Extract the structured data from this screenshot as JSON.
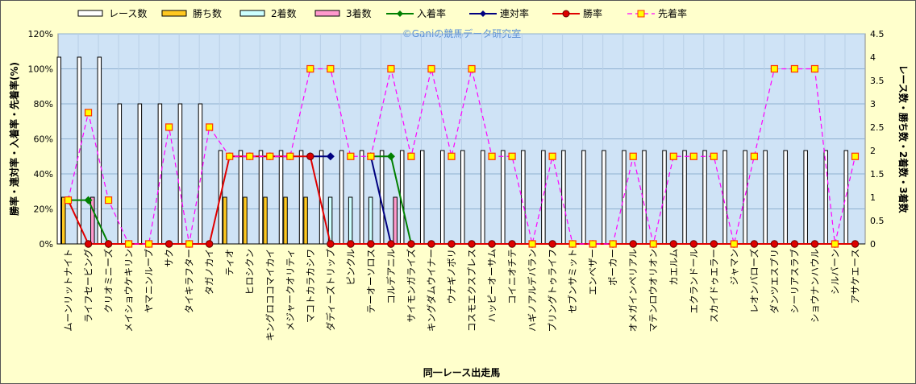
{
  "chart_data": {
    "type": "bar",
    "watermark": "©Ganiの競馬データ研究室",
    "xlabel": "同一レース出走馬",
    "ylabel_left": "勝率・連対率・入着率・先着率(%)",
    "ylabel_right": "レース数・勝ち数・2着数・3着数",
    "y_left": {
      "lim": [
        0,
        120
      ],
      "ticks": [
        "0%",
        "20%",
        "40%",
        "60%",
        "80%",
        "100%",
        "120%"
      ]
    },
    "y_right": {
      "lim": [
        0,
        4.5
      ],
      "ticks": [
        "0",
        "0.5",
        "1",
        "1.5",
        "2",
        "2.5",
        "3",
        "3.5",
        "4",
        "4.5"
      ]
    },
    "grid": true,
    "legend_position": "top",
    "categories": [
      "ムーンリットナイト",
      "ライフセービング",
      "クリオミニーズ",
      "メイショウケキリン",
      "ヤマニンループ",
      "サク",
      "タイキラフター",
      "タガノカイ",
      "ティオ",
      "ヒロシクン",
      "キングロココマイカイ",
      "メジャークオリティ",
      "マコトカラカシワ",
      "ダディーズトリップ",
      "ピンクル",
      "テーオーソロス",
      "コルデアニル",
      "サイモンガライズ",
      "キングダムウイナー",
      "ウナギノボリ",
      "コスモエクスプレス",
      "ハッピーオーサム",
      "コイニオチテ",
      "ハギノアルデバラン",
      "プリングトゥライフ",
      "セブンサミット",
      "エンベザー",
      "ポーカー",
      "オメガインペリアル",
      "マテンロウオリオン",
      "カエルム",
      "エクランドール",
      "スカイドゥエラー",
      "ジャマン",
      "レオンバローズ",
      "ダンツエスプリ",
      "シーリアスラブ",
      "ショウナンハウル",
      "シルバーン",
      "アサケエース"
    ],
    "series": [
      {
        "name": "レース数",
        "axis": "right",
        "kind": "bar",
        "color": "#ffffff",
        "outline": "#000000",
        "values": [
          4,
          4,
          4,
          3,
          3,
          3,
          3,
          3,
          2,
          2,
          2,
          2,
          2,
          2,
          2,
          2,
          2,
          2,
          2,
          2,
          2,
          2,
          2,
          2,
          2,
          2,
          2,
          2,
          2,
          2,
          2,
          2,
          2,
          2,
          2,
          2,
          2,
          2,
          2,
          2
        ]
      },
      {
        "name": "勝ち数",
        "axis": "right",
        "kind": "bar",
        "color": "#ffc820",
        "values": [
          1,
          0,
          0,
          0,
          0,
          0,
          0,
          0,
          1,
          1,
          1,
          1,
          1,
          0,
          0,
          0,
          0,
          0,
          0,
          0,
          0,
          0,
          0,
          0,
          0,
          0,
          0,
          0,
          0,
          0,
          0,
          0,
          0,
          0,
          0,
          0,
          0,
          0,
          0,
          0
        ]
      },
      {
        "name": "2着数",
        "axis": "right",
        "kind": "bar",
        "color": "#ccffff",
        "values": [
          0,
          0,
          0,
          0,
          0,
          0,
          0,
          0,
          0,
          0,
          0,
          0,
          0,
          1,
          1,
          1,
          0,
          0,
          0,
          0,
          0,
          0,
          0,
          0,
          0,
          0,
          0,
          0,
          0,
          0,
          0,
          0,
          0,
          0,
          0,
          0,
          0,
          0,
          0,
          0
        ]
      },
      {
        "name": "3着数",
        "axis": "right",
        "kind": "bar",
        "color": "#ff99cc",
        "values": [
          0,
          1,
          0,
          0,
          0,
          0,
          0,
          0,
          0,
          0,
          0,
          0,
          0,
          0,
          0,
          0,
          1,
          0,
          0,
          0,
          0,
          0,
          0,
          0,
          0,
          0,
          0,
          0,
          0,
          0,
          0,
          0,
          0,
          0,
          0,
          0,
          0,
          0,
          0,
          0
        ]
      },
      {
        "name": "入着率",
        "axis": "left",
        "kind": "line",
        "color": "#008000",
        "values": [
          25,
          25,
          0,
          null,
          null,
          null,
          null,
          null,
          null,
          null,
          null,
          null,
          null,
          null,
          null,
          50,
          50,
          0,
          null,
          null,
          null,
          null,
          null,
          null,
          null,
          null,
          null,
          null,
          null,
          null,
          null,
          null,
          null,
          null,
          null,
          null,
          null,
          null,
          null,
          null
        ]
      },
      {
        "name": "連対率",
        "axis": "left",
        "kind": "line",
        "color": "#000080",
        "values": [
          null,
          null,
          null,
          null,
          null,
          null,
          null,
          null,
          null,
          null,
          null,
          null,
          50,
          50,
          null,
          50,
          0,
          null,
          null,
          null,
          null,
          null,
          null,
          null,
          null,
          null,
          null,
          null,
          null,
          null,
          null,
          null,
          null,
          null,
          null,
          null,
          null,
          null,
          null,
          null
        ]
      },
      {
        "name": "勝率",
        "axis": "left",
        "kind": "line",
        "color": "#e00000",
        "values": [
          25,
          0,
          0,
          0,
          0,
          0,
          0,
          0,
          50,
          50,
          50,
          50,
          50,
          0,
          0,
          0,
          0,
          0,
          0,
          0,
          0,
          0,
          0,
          0,
          0,
          0,
          0,
          0,
          0,
          0,
          0,
          0,
          0,
          0,
          0,
          0,
          0,
          0,
          0,
          0
        ]
      },
      {
        "name": "先着率",
        "axis": "left",
        "kind": "line",
        "color": "#ff00ff",
        "dashed": true,
        "values": [
          25,
          75,
          25,
          0,
          0,
          66.7,
          0,
          66.7,
          50,
          50,
          50,
          50,
          100,
          100,
          50,
          50,
          100,
          50,
          100,
          50,
          100,
          50,
          50,
          0,
          50,
          0,
          0,
          0,
          50,
          0,
          50,
          50,
          50,
          0,
          50,
          100,
          100,
          100,
          0,
          50
        ]
      }
    ]
  }
}
